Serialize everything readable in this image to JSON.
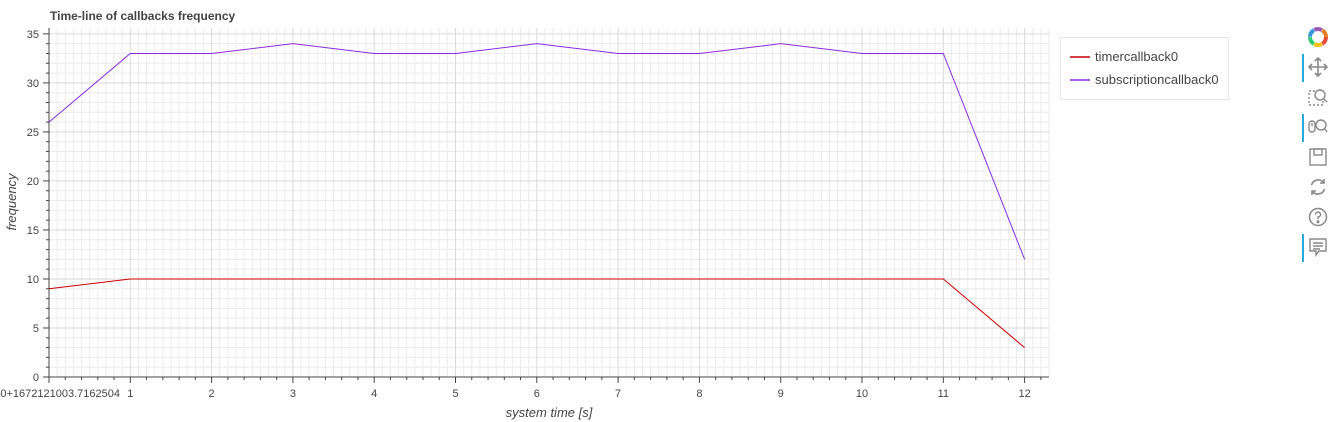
{
  "chart_data": {
    "type": "line",
    "title": "Time-line of callbacks frequency",
    "xlabel": "system time [s]",
    "ylabel": "frequency",
    "x": [
      0,
      1,
      2,
      3,
      4,
      5,
      6,
      7,
      8,
      9,
      10,
      11,
      12
    ],
    "x_tick_labels": [
      "0+1672121003.7162504",
      "1",
      "2",
      "3",
      "4",
      "5",
      "6",
      "7",
      "8",
      "9",
      "10",
      "11",
      "12"
    ],
    "y_ticks": [
      0,
      5,
      10,
      15,
      20,
      25,
      30,
      35
    ],
    "xlim": [
      0,
      12.3
    ],
    "ylim": [
      0,
      35.6
    ],
    "grid": true,
    "legend_position": "right",
    "series": [
      {
        "name": "timercallback0",
        "color": "#cc0000",
        "values": [
          9,
          10,
          10,
          10,
          10,
          10,
          10,
          10,
          10,
          10,
          10,
          10,
          3
        ]
      },
      {
        "name": "subscriptioncallback0",
        "color": "#8a2be2",
        "values": [
          26,
          33,
          33,
          34,
          33,
          33,
          34,
          33,
          33,
          34,
          33,
          33,
          12
        ]
      }
    ]
  },
  "toolbar": {
    "tools": [
      {
        "name": "bokeh-logo-icon",
        "active": false
      },
      {
        "name": "pan-icon",
        "active": true
      },
      {
        "name": "box-zoom-icon",
        "active": false
      },
      {
        "name": "wheel-zoom-icon",
        "active": true
      },
      {
        "name": "save-icon",
        "active": false
      },
      {
        "name": "reset-icon",
        "active": false
      },
      {
        "name": "help-icon",
        "active": false
      },
      {
        "name": "hover-icon",
        "active": true
      }
    ]
  }
}
